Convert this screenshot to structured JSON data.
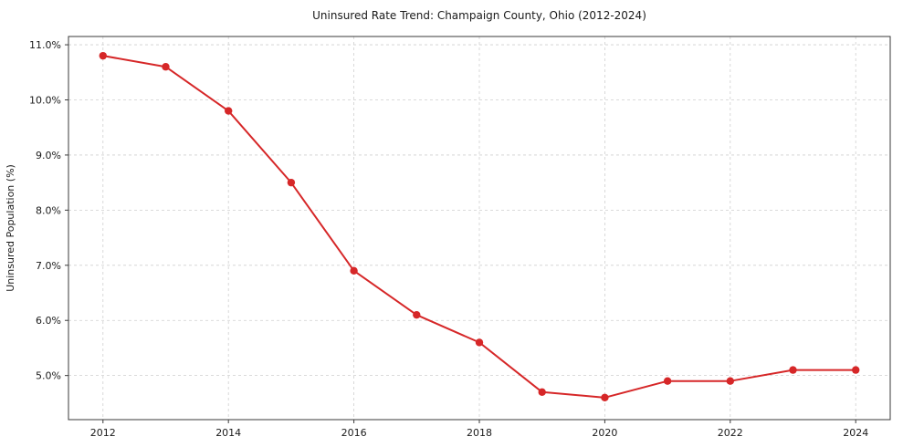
{
  "chart_data": {
    "type": "line",
    "title": "Uninsured Rate Trend: Champaign County, Ohio (2012-2024)",
    "xlabel": "",
    "ylabel": "Uninsured Population (%)",
    "x": [
      2012,
      2013,
      2014,
      2015,
      2016,
      2017,
      2018,
      2019,
      2020,
      2021,
      2022,
      2023,
      2024
    ],
    "series": [
      {
        "name": "Uninsured Rate",
        "values": [
          10.8,
          10.6,
          9.8,
          8.5,
          6.9,
          6.1,
          5.6,
          4.7,
          4.6,
          4.9,
          4.9,
          5.1,
          5.1
        ]
      }
    ],
    "xlim": [
      2011.45,
      2024.55
    ],
    "ylim": [
      4.2,
      11.15
    ],
    "x_ticks": [
      2012,
      2014,
      2016,
      2018,
      2020,
      2022,
      2024
    ],
    "y_ticks": [
      5.0,
      6.0,
      7.0,
      8.0,
      9.0,
      10.0,
      11.0
    ],
    "y_tick_suffix": "%",
    "grid": "dashed",
    "legend": "none",
    "line_color": "#d62728",
    "marker": "circle",
    "marker_radius": 4.2
  }
}
